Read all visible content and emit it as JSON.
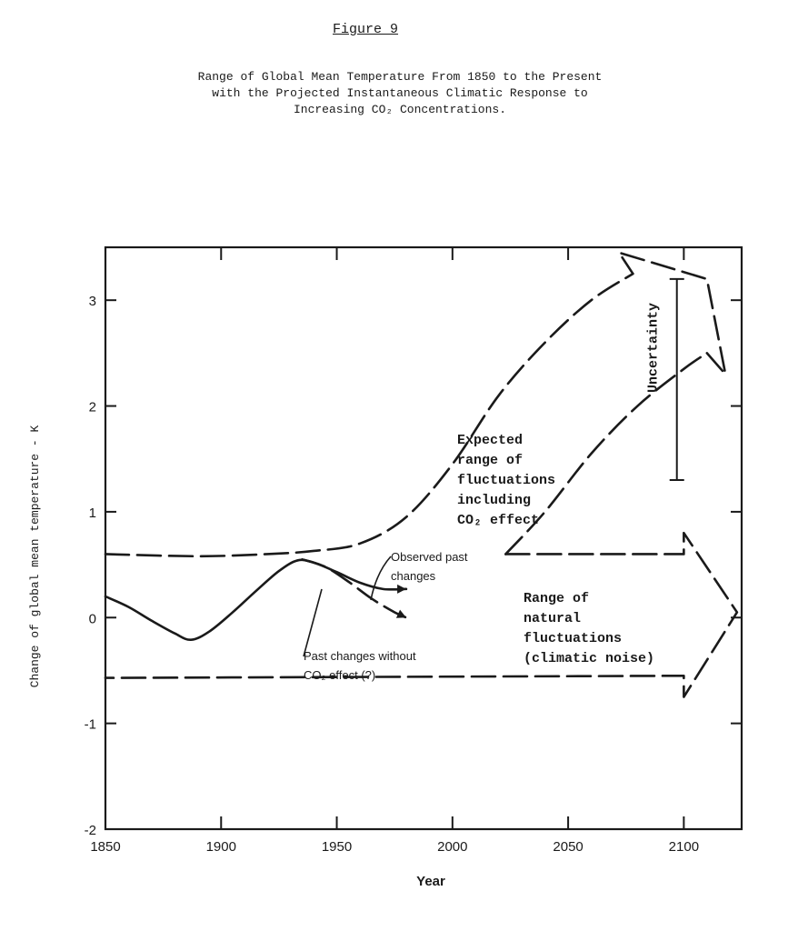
{
  "figure_label": "Figure 9",
  "caption": {
    "line1": "Range of Global Mean Temperature From 1850 to the Present",
    "line2": "with the Projected Instantaneous Climatic Response to",
    "line3": "Increasing CO₂ Concentrations."
  },
  "chart_data": {
    "type": "line",
    "title": "",
    "xlabel": "Year",
    "ylabel": "Change of global mean temperature - K",
    "xlim": [
      1850,
      2125
    ],
    "ylim": [
      -2,
      3.5
    ],
    "xticks": [
      1850,
      1900,
      1950,
      2000,
      2050,
      2100
    ],
    "xtick_labels": [
      "1850",
      "1900",
      "1950",
      "2000",
      "2050",
      "2100"
    ],
    "yticks": [
      -2,
      -1,
      0,
      1,
      2,
      3
    ],
    "ytick_labels": [
      "-2",
      "-1",
      "0",
      "1",
      "2",
      "3"
    ],
    "grid": false,
    "series": [
      {
        "name": "Observed past changes",
        "style": "solid",
        "x": [
          1850,
          1860,
          1870,
          1880,
          1887,
          1895,
          1905,
          1915,
          1925,
          1933,
          1940,
          1950,
          1960,
          1970,
          1980
        ],
        "y": [
          0.2,
          0.1,
          -0.03,
          -0.15,
          -0.21,
          -0.13,
          0.05,
          0.25,
          0.44,
          0.54,
          0.52,
          0.43,
          0.33,
          0.27,
          0.27
        ]
      },
      {
        "name": "Past changes without CO₂ effect (?)",
        "style": "dashed",
        "x": [
          1935,
          1945,
          1955,
          1965,
          1975,
          1980
        ],
        "y": [
          0.55,
          0.48,
          0.34,
          0.18,
          0.05,
          0.0
        ]
      },
      {
        "name": "Expected range upper bound",
        "style": "dashed",
        "x": [
          1850,
          1890,
          1920,
          1940,
          1960,
          1980,
          2000,
          2020,
          2040,
          2060,
          2078
        ],
        "y": [
          0.6,
          0.58,
          0.6,
          0.63,
          0.7,
          0.95,
          1.45,
          2.1,
          2.6,
          3.0,
          3.25
        ]
      },
      {
        "name": "Expected range lower bound",
        "style": "dashed",
        "x": [
          2023,
          2040,
          2060,
          2080,
          2100,
          2110
        ],
        "y": [
          0.6,
          1.0,
          1.55,
          2.0,
          2.35,
          2.5
        ]
      },
      {
        "name": "Projection tip",
        "style": "dashed",
        "x": [
          2110,
          2118,
          2110,
          2072,
          2078
        ],
        "y": [
          2.5,
          2.3,
          3.2,
          3.45,
          3.25
        ]
      },
      {
        "name": "Range of natural fluctuations",
        "style": "dashed",
        "x": [
          2023,
          2100,
          2100,
          2123,
          2100,
          2100,
          1850
        ],
        "y": [
          0.6,
          0.6,
          0.8,
          0.05,
          -0.75,
          -0.55,
          -0.57
        ]
      }
    ],
    "uncertainty_bar": {
      "x": 2097,
      "y_low": 1.3,
      "y_high": 3.2
    },
    "annotations": {
      "observed": [
        "Observed past",
        "changes"
      ],
      "without_co2": [
        "Past changes without",
        "CO₂ effect (?)"
      ],
      "expected": [
        "Expected",
        "range of",
        "fluctuations",
        "including",
        "CO₂ effect"
      ],
      "natural": [
        "Range of",
        "natural",
        "fluctuations",
        "(climatic noise)"
      ],
      "uncertainty": "Uncertainty"
    }
  }
}
